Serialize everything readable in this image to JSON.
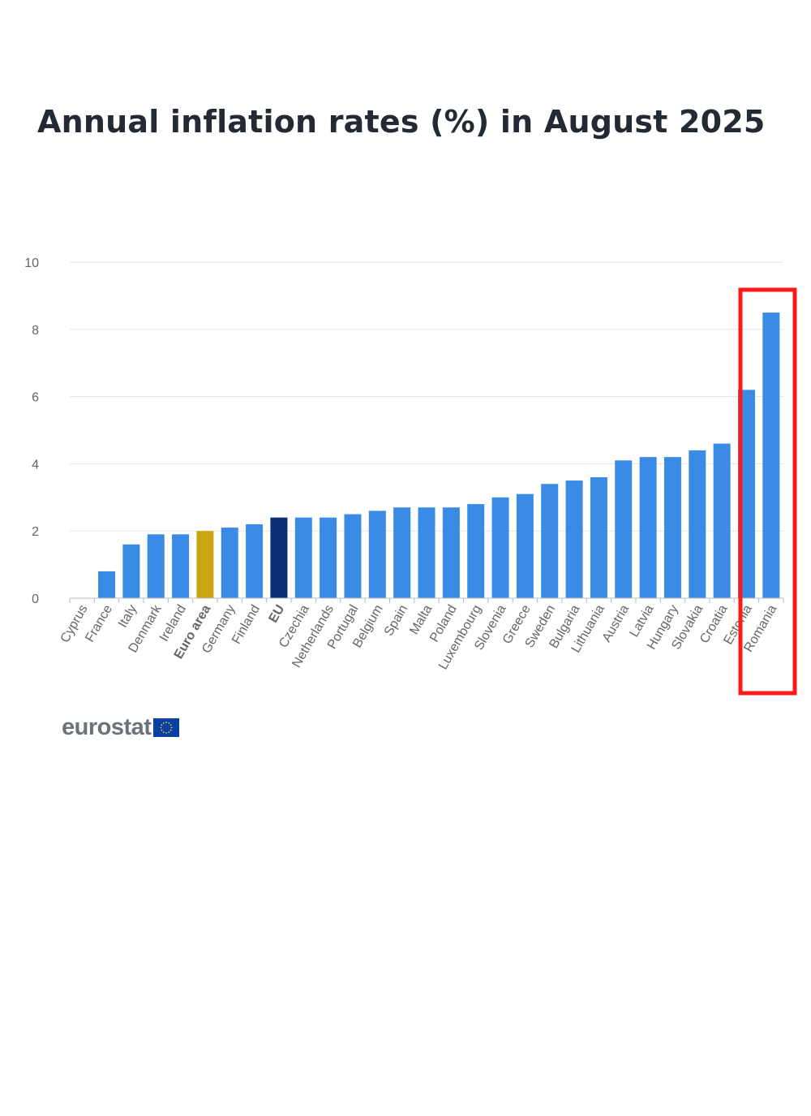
{
  "chart_data": {
    "type": "bar",
    "title": "Annual inflation rates (%) in August 2025",
    "xlabel": "",
    "ylabel": "",
    "ylim": [
      0,
      10
    ],
    "yticks": [
      0,
      2,
      4,
      6,
      8,
      10
    ],
    "grid": true,
    "categories": [
      "Cyprus",
      "France",
      "Italy",
      "Denmark",
      "Ireland",
      "Euro area",
      "Germany",
      "Finland",
      "EU",
      "Czechia",
      "Netherlands",
      "Portugal",
      "Belgium",
      "Spain",
      "Malta",
      "Poland",
      "Luxembourg",
      "Slovenia",
      "Greece",
      "Sweden",
      "Bulgaria",
      "Lithuania",
      "Austria",
      "Latvia",
      "Hungary",
      "Slovakia",
      "Croatia",
      "Estonia",
      "Romania"
    ],
    "values": [
      0.0,
      0.8,
      1.6,
      1.9,
      1.9,
      2.0,
      2.1,
      2.2,
      2.4,
      2.4,
      2.4,
      2.5,
      2.6,
      2.7,
      2.7,
      2.7,
      2.8,
      3.0,
      3.1,
      3.4,
      3.5,
      3.6,
      4.1,
      4.2,
      4.2,
      4.4,
      4.6,
      6.2,
      8.5
    ],
    "bold_categories": [
      "Euro area",
      "EU"
    ],
    "colors": {
      "default": "#3a8be6",
      "Euro area": "#c9a513",
      "EU": "#0b2d78",
      "grid": "#e3e6ea",
      "axis": "#b8bcc2",
      "tick_label": "#666666",
      "highlight_box": "#ff1a1a"
    },
    "highlight": [
      "Estonia",
      "Romania"
    ]
  },
  "branding": {
    "logo_text": "eurostat",
    "flag_icon": "eu-flag-icon"
  }
}
